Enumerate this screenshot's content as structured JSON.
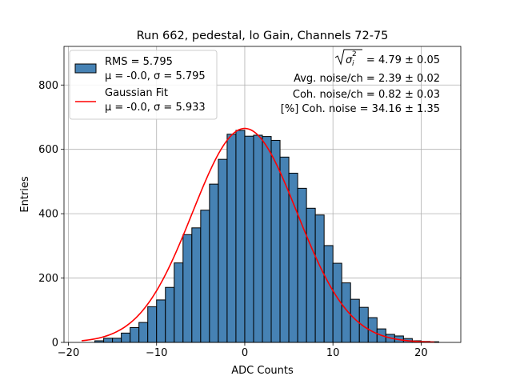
{
  "chart_data": {
    "type": "bar",
    "title": "Run 662, pedestal, lo Gain, Channels 72-75",
    "xlabel": "ADC Counts",
    "ylabel": "Entries",
    "xlim": [
      -20.5,
      24.5
    ],
    "ylim": [
      0,
      920
    ],
    "xticks": [
      -20,
      -10,
      0,
      10,
      20
    ],
    "yticks": [
      0,
      200,
      400,
      600,
      800
    ],
    "grid": true,
    "bin_width": 1,
    "bin_left_edges": [
      -17,
      -16,
      -15,
      -14,
      -13,
      -12,
      -11,
      -10,
      -9,
      -8,
      -7,
      -6,
      -5,
      -4,
      -3,
      -2,
      -1,
      0,
      1,
      2,
      3,
      4,
      5,
      6,
      7,
      8,
      9,
      10,
      11,
      12,
      13,
      14,
      15,
      16,
      17,
      18,
      19,
      20,
      21
    ],
    "counts": [
      5,
      13,
      13,
      29,
      46,
      62,
      111,
      132,
      171,
      247,
      335,
      356,
      411,
      492,
      569,
      647,
      659,
      641,
      644,
      640,
      628,
      576,
      526,
      479,
      417,
      396,
      301,
      246,
      185,
      134,
      109,
      77,
      42,
      25,
      20,
      12,
      5,
      3,
      2
    ],
    "fit": {
      "mu": 0.0,
      "sigma": 5.933,
      "amplitude": 665,
      "x_range": [
        -18.5,
        21.5
      ]
    },
    "hist_color": "#4682b4",
    "fit_color": "#ff0000",
    "legend": {
      "position": "upper-left",
      "entries": [
        {
          "label_line1": "RMS = 5.795",
          "label_line2": "μ = -0.0, σ = 5.795"
        },
        {
          "label_line1": "Gaussian Fit",
          "label_line2": "μ = -0.0, σ = 5.933"
        }
      ]
    },
    "annotations": {
      "sigma_value": "= 4.79 ± 0.05",
      "avg_noise": "Avg. noise/ch = 2.39 ± 0.02",
      "coh_noise": "Coh. noise/ch = 0.82 ± 0.03",
      "coh_percent": "[%] Coh. noise = 34.16 ± 1.35"
    }
  }
}
